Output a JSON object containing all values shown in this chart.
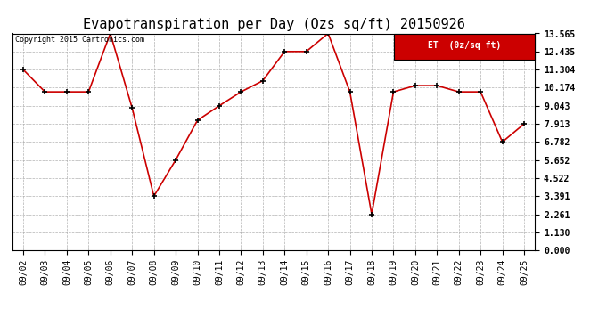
{
  "title": "Evapotranspiration per Day (Ozs sq/ft) 20150926",
  "copyright_text": "Copyright 2015 Cartronics.com",
  "legend_label": "ET  (0z/sq ft)",
  "dates": [
    "09/02",
    "09/03",
    "09/04",
    "09/05",
    "09/06",
    "09/07",
    "09/08",
    "09/09",
    "09/10",
    "09/11",
    "09/12",
    "09/13",
    "09/14",
    "09/15",
    "09/16",
    "09/17",
    "09/18",
    "09/19",
    "09/20",
    "09/21",
    "09/22",
    "09/23",
    "09/24",
    "09/25"
  ],
  "values": [
    11.304,
    9.913,
    9.913,
    9.913,
    13.565,
    8.913,
    3.391,
    5.652,
    8.13,
    9.043,
    9.913,
    10.609,
    12.435,
    12.435,
    13.565,
    9.913,
    2.261,
    9.913,
    10.304,
    10.304,
    9.913,
    9.913,
    6.782,
    7.913
  ],
  "line_color": "#cc0000",
  "marker_color": "#000000",
  "bg_color": "#ffffff",
  "grid_color": "#aaaaaa",
  "yticks": [
    0.0,
    1.13,
    2.261,
    3.391,
    4.522,
    5.652,
    6.782,
    7.913,
    9.043,
    10.174,
    11.304,
    12.435,
    13.565
  ],
  "ylim": [
    0.0,
    13.565
  ],
  "title_fontsize": 11,
  "tick_fontsize": 7,
  "legend_bg": "#cc0000",
  "legend_text_color": "#ffffff"
}
